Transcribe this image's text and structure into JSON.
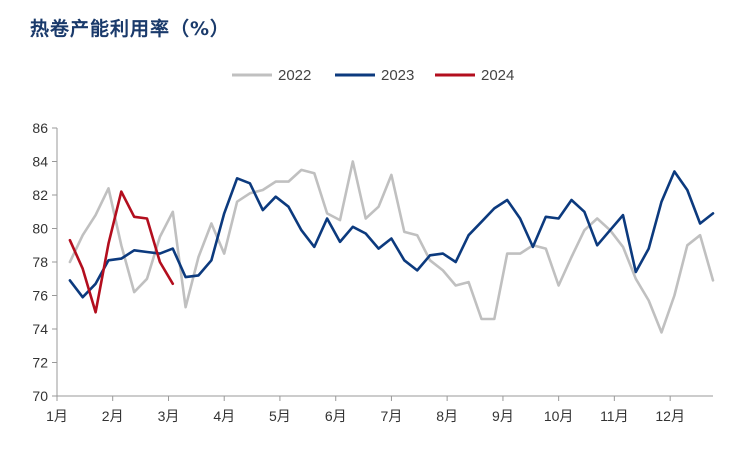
{
  "chart_data": {
    "type": "line",
    "title": "热卷产能利用率（%）",
    "xlabel": "",
    "ylabel": "",
    "ylim": [
      70,
      86
    ],
    "yticks": [
      "70",
      "72",
      "74",
      "76",
      "78",
      "80",
      "82",
      "84",
      "86"
    ],
    "xlim": [
      1,
      52
    ],
    "x_tick_labels": [
      "1月",
      "2月",
      "3月",
      "4月",
      "5月",
      "6月",
      "7月",
      "8月",
      "9月",
      "10月",
      "11月",
      "12月"
    ],
    "x_tick_weeks": [
      1,
      5.33,
      9.67,
      14,
      18.33,
      22.67,
      27,
      31.33,
      35.67,
      40,
      44.33,
      48.67
    ],
    "legend_position": "top-center",
    "grid": false,
    "series": [
      {
        "name": "2022",
        "color": "#c0c0c0",
        "x": [
          2,
          3,
          4,
          5,
          6,
          7,
          8,
          9,
          10,
          11,
          12,
          13,
          14,
          15,
          16,
          17,
          18,
          19,
          20,
          21,
          22,
          23,
          24,
          25,
          26,
          27,
          28,
          29,
          30,
          31,
          32,
          33,
          34,
          35,
          36,
          37,
          38,
          39,
          40,
          41,
          42,
          43,
          44,
          45,
          46,
          47,
          48,
          49,
          50,
          51,
          52
        ],
        "values": [
          78.0,
          79.6,
          80.8,
          82.4,
          79.0,
          76.2,
          77.0,
          79.5,
          81.0,
          75.3,
          78.3,
          80.3,
          78.5,
          81.6,
          82.1,
          82.3,
          82.8,
          82.8,
          83.5,
          83.3,
          80.9,
          80.5,
          84.0,
          80.6,
          81.3,
          83.2,
          79.8,
          79.6,
          78.1,
          77.5,
          76.6,
          76.8,
          74.6,
          74.6,
          78.5,
          78.5,
          79.0,
          78.8,
          76.6,
          78.3,
          79.9,
          80.6,
          79.9,
          78.9,
          77.0,
          75.7,
          73.8,
          76.0,
          79.0,
          79.6,
          76.9
        ]
      },
      {
        "name": "2023",
        "color": "#0c3a7e",
        "x": [
          2,
          3,
          4,
          5,
          6,
          7,
          8,
          9,
          10,
          11,
          12,
          13,
          14,
          15,
          16,
          17,
          18,
          19,
          20,
          21,
          22,
          23,
          24,
          25,
          26,
          27,
          28,
          29,
          30,
          31,
          32,
          33,
          34,
          35,
          36,
          37,
          38,
          39,
          40,
          41,
          42,
          43,
          44,
          45,
          46,
          47,
          48,
          49,
          50,
          51,
          52
        ],
        "values": [
          76.9,
          75.9,
          76.7,
          78.1,
          78.2,
          78.7,
          78.6,
          78.5,
          78.8,
          77.1,
          77.2,
          78.1,
          80.9,
          83.0,
          82.7,
          81.1,
          81.9,
          81.3,
          79.9,
          78.9,
          80.6,
          79.2,
          80.1,
          79.7,
          78.8,
          79.4,
          78.1,
          77.5,
          78.4,
          78.5,
          78.0,
          79.6,
          80.4,
          81.2,
          81.7,
          80.6,
          78.9,
          80.7,
          80.6,
          81.7,
          81.0,
          79.0,
          79.9,
          80.8,
          77.4,
          78.8,
          81.6,
          83.4,
          82.3,
          80.3,
          80.9
        ]
      },
      {
        "name": "2024",
        "color": "#b30e1e",
        "x": [
          2,
          3,
          4,
          5,
          6,
          7,
          8,
          9,
          10
        ],
        "values": [
          79.3,
          77.6,
          75.0,
          79.1,
          82.2,
          80.7,
          80.6,
          78.0,
          76.7
        ]
      }
    ]
  }
}
